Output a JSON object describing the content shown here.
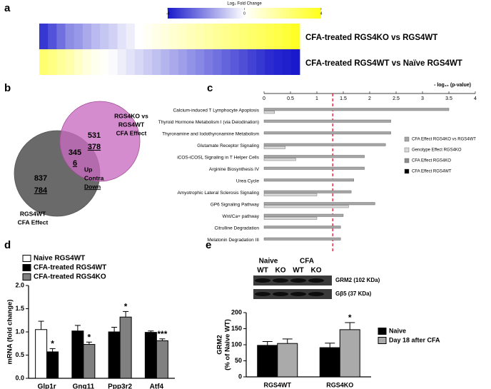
{
  "chart_data": [
    {
      "type": "heatmap",
      "panel": "a",
      "colorbar": {
        "title": "Log₂ Fold Change",
        "lim": [
          -4,
          4
        ],
        "ticks": [
          -4,
          0,
          4
        ]
      },
      "colormap": [
        "#1a1acc",
        "#ffffff",
        "#ffff1a"
      ],
      "rows": [
        {
          "name": "CFA-treated RGS4KO vs RGS4WT",
          "values": [
            -3.5,
            -3,
            -2.5,
            -2,
            -1.8,
            -1.5,
            -1.2,
            -1,
            -0.8,
            -0.5,
            -0.3,
            0,
            0.2,
            0.4,
            0.6,
            0.8,
            1,
            1.2,
            1.4,
            1.6,
            1.8,
            2,
            2.2,
            2.4,
            2.6,
            2.8,
            3,
            3.2,
            3.5,
            3.8
          ]
        },
        {
          "name": "CFA-treated RGS4WT vs Naïve RGS4WT",
          "values": [
            2.5,
            2.2,
            1.8,
            1.5,
            1,
            0.6,
            0.3,
            0.1,
            -0.1,
            -0.3,
            -0.5,
            -0.7,
            -0.9,
            -1.1,
            -1.3,
            -1.5,
            -1.7,
            -1.9,
            -2.1,
            -2.3,
            -2.5,
            -2.7,
            -2.9,
            -3.1,
            -3.3,
            -3.5,
            -3.7,
            -3.8,
            -3.9,
            -4
          ]
        }
      ]
    },
    {
      "type": "venn",
      "panel": "b",
      "sets": [
        {
          "label": [
            "RGS4KO vs",
            "RGS4WT",
            "CFA Effect"
          ],
          "color": "#c96cc0",
          "up": 531,
          "down": 378
        },
        {
          "label": [
            "RGS4WT",
            "CFA Effect"
          ],
          "color": "#6a6a6a",
          "up": 837,
          "down": 784
        }
      ],
      "overlap": {
        "contra": 345,
        "down": 6
      },
      "legend": [
        {
          "text": "Up",
          "color": "#000000"
        },
        {
          "text": "Contra",
          "color": "#e0001b"
        },
        {
          "text": "Down",
          "color": "#1f6fbf"
        }
      ]
    },
    {
      "type": "barh",
      "panel": "c",
      "x_label": "- log₁₀ (p-value)",
      "xlim": [
        0,
        4
      ],
      "xticks": [
        0,
        0.5,
        1,
        1.5,
        2,
        2.5,
        3,
        3.5,
        4
      ],
      "threshold": 1.3,
      "threshold_color": "#e0001b",
      "categories": [
        "Calcium-induced T Lymphocyte Apoptosis",
        "Thyroid Hormone Metabolism I (via Deiodination)",
        "Thyronamine and Iodothyronamine Metabolism",
        "Glutamate Receptor Signaling",
        "iCOS-iCOSL Signaling in T Helper Cells",
        "Arginine Biosynthesis IV",
        "Urea Cycle",
        "Amyotrophic Lateral Sclerosis Signaling",
        "GP6 Signaling Pathway",
        "Wnt/Ca+ pathway",
        "Citrulline Degradation",
        "Melatonin Degradation III"
      ],
      "series": [
        {
          "name": "CFA Effect RGS4KO vs RGS4WT",
          "color": "#a6a6a6",
          "values": [
            3.5,
            2.4,
            2.4,
            2.3,
            1.9,
            1.9,
            1.7,
            1.65,
            2.1,
            1.5,
            1.45,
            1.45
          ]
        },
        {
          "name": "Genotype Effect RGS4KO",
          "color": "#d9d9d9",
          "values": [
            0.2,
            null,
            null,
            0.4,
            0.6,
            null,
            null,
            1.0,
            1.6,
            1.0,
            null,
            null
          ]
        },
        {
          "name": "CFA Effect RGS4KO",
          "color": "#8c8c8c",
          "values": [
            null,
            null,
            null,
            null,
            null,
            null,
            null,
            null,
            null,
            null,
            null,
            null
          ]
        },
        {
          "name": "CFA Effect RGS4WT",
          "color": "#000000",
          "values": [
            null,
            null,
            null,
            null,
            null,
            null,
            null,
            null,
            null,
            null,
            null,
            null
          ]
        }
      ]
    },
    {
      "type": "bar",
      "panel": "d",
      "y_label": [
        "mRNA (fold change)"
      ],
      "ylim": [
        0,
        2
      ],
      "yticks": [
        {
          "value": 0,
          "label": "0.0"
        },
        {
          "value": 0.5,
          "label": "0.5"
        },
        {
          "value": 1,
          "label": "1.0"
        },
        {
          "value": 1.5,
          "label": "1.5"
        },
        {
          "value": 2,
          "label": "2.0"
        }
      ],
      "categories": [
        "Glp1r",
        "Gng11",
        "Ppp3r2",
        "Atf4"
      ],
      "series": [
        {
          "name": "Naive RGS4WT",
          "color": "#ffffff",
          "values": [
            1.05,
            null,
            null,
            null
          ],
          "errors": [
            0.18,
            null,
            null,
            null
          ],
          "stars": [
            null,
            null,
            null,
            null
          ]
        },
        {
          "name": "CFA-treated RGS4WT",
          "color": "#000000",
          "values": [
            0.57,
            1.02,
            1.0,
            0.99
          ],
          "errors": [
            0.07,
            0.12,
            0.1,
            0.03
          ],
          "stars": [
            "*",
            null,
            null,
            null
          ]
        },
        {
          "name": "CFA-treated RGS4KO",
          "color": "#808080",
          "values": [
            null,
            0.73,
            1.32,
            0.81
          ],
          "errors": [
            null,
            0.05,
            0.12,
            0.04
          ],
          "stars": [
            null,
            "*",
            "*",
            "***"
          ]
        }
      ]
    },
    {
      "type": "bar",
      "panel": "e",
      "y_label": [
        "GRM2",
        "(% of Naive WT)"
      ],
      "ylim": [
        0,
        200
      ],
      "yticks": [
        0,
        50,
        100,
        150,
        200
      ],
      "categories": [
        "RGS4WT",
        "RGS4KO"
      ],
      "series": [
        {
          "name": "Naive",
          "color": "#000000",
          "values": [
            98,
            91
          ],
          "errors": [
            12,
            14
          ],
          "stars": [
            null,
            null
          ]
        },
        {
          "name": "Day 18 after CFA",
          "color": "#aaaaaa",
          "values": [
            104,
            147
          ],
          "errors": [
            14,
            22
          ],
          "stars": [
            null,
            "*"
          ]
        }
      ],
      "blot": {
        "groups": [
          {
            "text": "Naive",
            "color": "#000000",
            "lanes": [
              "WT",
              "KO"
            ]
          },
          {
            "text": "CFA",
            "color": "#e0001b",
            "lanes": [
              "WT",
              "KO"
            ]
          }
        ],
        "bands": [
          "GRM2 (102 KDa)",
          "Gβ5 (37 KDa)"
        ]
      }
    }
  ]
}
